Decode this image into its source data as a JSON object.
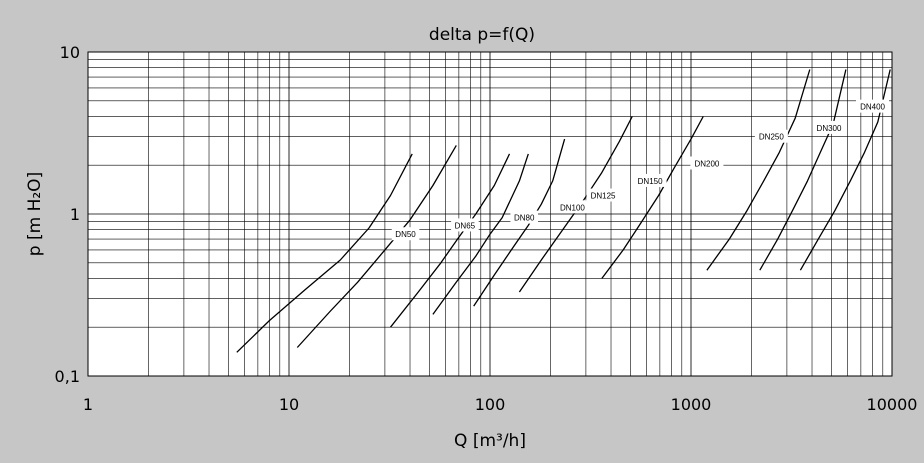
{
  "chart_data": {
    "type": "line",
    "title": "delta p=f(Q)",
    "xlabel": "Q [m³/h]",
    "ylabel": "p [m H₂O]",
    "xscale": "log",
    "yscale": "log",
    "xlim": [
      1,
      10000
    ],
    "ylim": [
      0.1,
      10
    ],
    "x_ticks": [
      1,
      10,
      100,
      1000,
      10000
    ],
    "x_tick_labels": [
      "1",
      "10",
      "100",
      "1000",
      "10000"
    ],
    "y_ticks": [
      0.1,
      1,
      10
    ],
    "y_tick_labels": [
      "0,1",
      "1",
      "10"
    ],
    "grid": true,
    "legend": "none",
    "series": [
      {
        "name": "DN50",
        "x": [
          5.5,
          8,
          12,
          18,
          25,
          32,
          41
        ],
        "y": [
          0.14,
          0.22,
          0.34,
          0.52,
          0.82,
          1.3,
          2.35
        ]
      },
      {
        "name": "DN65",
        "x": [
          11,
          16,
          22,
          30,
          40,
          52,
          68
        ],
        "y": [
          0.15,
          0.25,
          0.38,
          0.6,
          0.92,
          1.5,
          2.65
        ]
      },
      {
        "name": "DN80",
        "x": [
          32,
          44,
          57,
          70,
          85,
          105,
          125
        ],
        "y": [
          0.2,
          0.33,
          0.5,
          0.72,
          1.0,
          1.5,
          2.35
        ]
      },
      {
        "name": "DN100",
        "x": [
          52,
          68,
          85,
          100,
          115,
          140,
          155
        ],
        "y": [
          0.24,
          0.38,
          0.55,
          0.75,
          0.95,
          1.6,
          2.35
        ]
      },
      {
        "name": "DN125",
        "x": [
          83,
          105,
          130,
          155,
          180,
          205,
          235
        ],
        "y": [
          0.27,
          0.42,
          0.62,
          0.85,
          1.15,
          1.6,
          2.9
        ]
      },
      {
        "name": "DN150",
        "x": [
          140,
          180,
          230,
          290,
          360,
          440,
          510
        ],
        "y": [
          0.33,
          0.52,
          0.8,
          1.2,
          1.8,
          2.8,
          4.0
        ]
      },
      {
        "name": "DN200",
        "x": [
          360,
          460,
          570,
          690,
          820,
          1000,
          1150
        ],
        "y": [
          0.4,
          0.6,
          0.9,
          1.3,
          1.9,
          2.9,
          4.0
        ]
      },
      {
        "name": "DN250",
        "x": [
          1200,
          1550,
          1900,
          2300,
          2750,
          3300,
          3900
        ],
        "y": [
          0.45,
          0.7,
          1.05,
          1.6,
          2.4,
          3.9,
          7.8
        ]
      },
      {
        "name": "DN300",
        "x": [
          2200,
          2700,
          3200,
          3800,
          4400,
          5100,
          5900
        ],
        "y": [
          0.45,
          0.7,
          1.05,
          1.6,
          2.4,
          3.6,
          7.8
        ]
      },
      {
        "name": "DN400",
        "x": [
          3500,
          4300,
          5200,
          6200,
          7300,
          8500,
          9800
        ],
        "y": [
          0.45,
          0.7,
          1.05,
          1.6,
          2.4,
          3.7,
          7.8
        ]
      }
    ]
  },
  "labels": {
    "DN50": "DN50",
    "DN65": "DN65",
    "DN80": "DN80",
    "DN100": "DN100",
    "DN125": "DN125",
    "DN150": "DN150",
    "DN200": "DN200",
    "DN250": "DN250",
    "DN300": "DN300",
    "DN400": "DN400"
  }
}
